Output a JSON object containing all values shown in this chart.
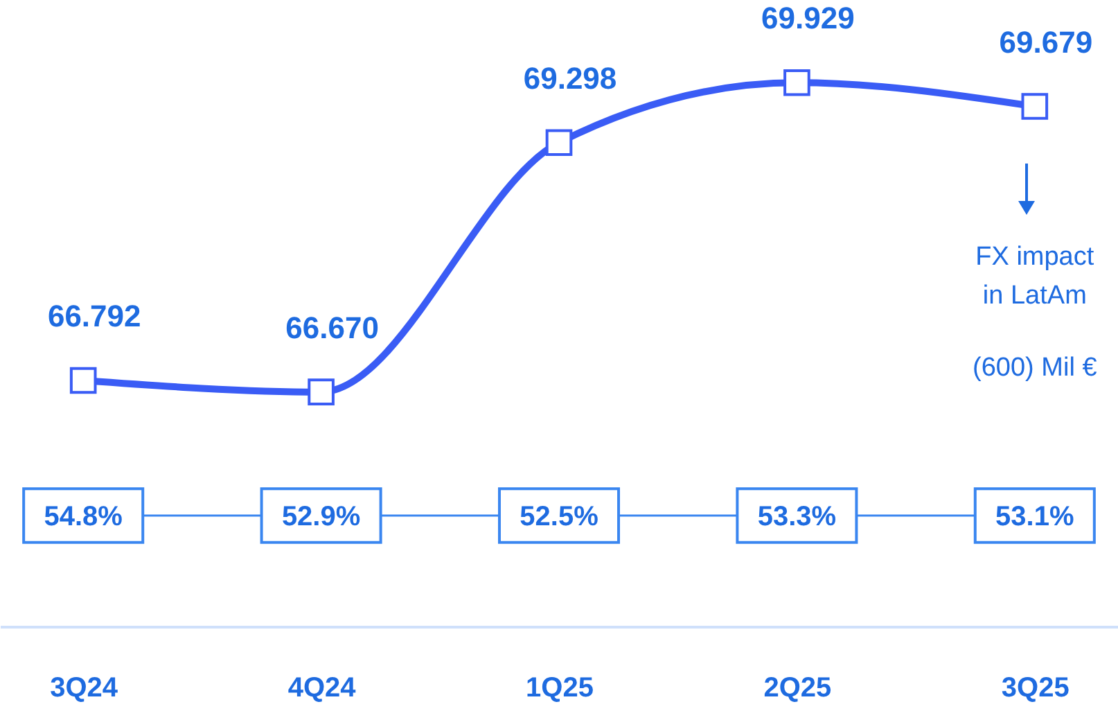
{
  "chart_data": [
    {
      "type": "line",
      "categories": [
        "3Q24",
        "4Q24",
        "1Q25",
        "2Q25",
        "3Q25"
      ],
      "series": [
        {
          "color": "#3a5cf5",
          "values": [
            66.792,
            66.67,
            69.298,
            69.929,
            69.679
          ],
          "value_labels": [
            "66.792",
            "66.670",
            "69.298",
            "69.929",
            "69.679"
          ]
        }
      ],
      "ylim": [
        64.2,
        70.8
      ],
      "tick_labels": "x",
      "marker": "square",
      "grid": false,
      "annotations": [
        "FX impact\nin LatAm",
        "(600) Mil €"
      ]
    },
    {
      "type": "other",
      "values": [
        54.8,
        52.9,
        52.5,
        53.3,
        53.1
      ],
      "value_labels": [
        "54.8%",
        "52.9%",
        "52.5%",
        "53.3%",
        "53.1%"
      ],
      "color": "#3a86f0"
    }
  ]
}
